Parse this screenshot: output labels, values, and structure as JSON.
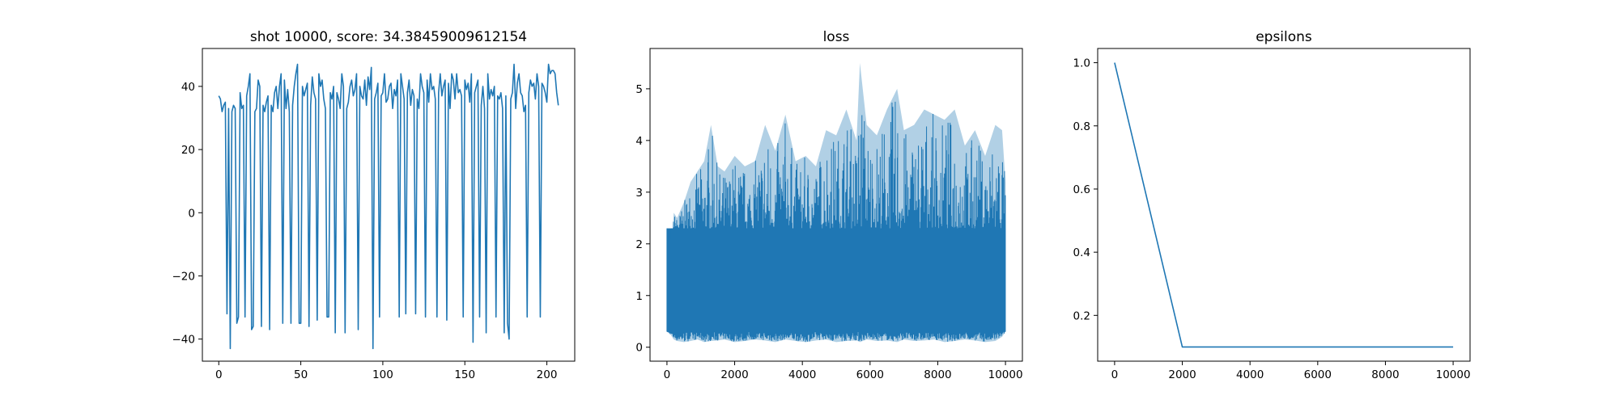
{
  "colors": {
    "line": "#1f77b4",
    "axes": "#000000",
    "background": "#ffffff"
  },
  "chart_data": [
    {
      "type": "line",
      "title": "shot 10000, score: 34.38459009612154",
      "xlabel": "",
      "ylabel": "",
      "xlim": [
        -10,
        217
      ],
      "ylim": [
        -47,
        52
      ],
      "xticks": [
        0,
        50,
        100,
        150,
        200
      ],
      "yticks": [
        -40,
        -20,
        0,
        20,
        40
      ],
      "series": [
        {
          "x": [
            0,
            1,
            2,
            3,
            4,
            5,
            6,
            7,
            8,
            9,
            10,
            11,
            12,
            13,
            14,
            15,
            16,
            17,
            18,
            19,
            20,
            21,
            22,
            23,
            24,
            25,
            26,
            27,
            28,
            29,
            30,
            31,
            32,
            33,
            34,
            35,
            36,
            37,
            38,
            39,
            40,
            41,
            42,
            43,
            44,
            45,
            46,
            47,
            48,
            49,
            50,
            51,
            52,
            53,
            54,
            55,
            56,
            57,
            58,
            59,
            60,
            61,
            62,
            63,
            64,
            65,
            66,
            67,
            68,
            69,
            70,
            71,
            72,
            73,
            74,
            75,
            76,
            77,
            78,
            79,
            80,
            81,
            82,
            83,
            84,
            85,
            86,
            87,
            88,
            89,
            90,
            91,
            92,
            93,
            94,
            95,
            96,
            97,
            98,
            99,
            100,
            101,
            102,
            103,
            104,
            105,
            106,
            107,
            108,
            109,
            110,
            111,
            112,
            113,
            114,
            115,
            116,
            117,
            118,
            119,
            120,
            121,
            122,
            123,
            124,
            125,
            126,
            127,
            128,
            129,
            130,
            131,
            132,
            133,
            134,
            135,
            136,
            137,
            138,
            139,
            140,
            141,
            142,
            143,
            144,
            145,
            146,
            147,
            148,
            149,
            150,
            151,
            152,
            153,
            154,
            155,
            156,
            157,
            158,
            159,
            160,
            161,
            162,
            163,
            164,
            165,
            166,
            167,
            168,
            169,
            170,
            171,
            172,
            173,
            174,
            175,
            176,
            177,
            178,
            179,
            180,
            181,
            182,
            183,
            184,
            185,
            186,
            187,
            188,
            189,
            190,
            191,
            192,
            193,
            194,
            195,
            196,
            197,
            198,
            199,
            200,
            201,
            202,
            203,
            204,
            205,
            206,
            207
          ],
          "y": [
            37,
            36,
            32,
            34,
            35,
            -32,
            33,
            -43,
            32,
            34,
            33,
            -35,
            -33,
            38,
            33,
            34,
            -33,
            37,
            40,
            44,
            -37,
            -36,
            32,
            33,
            42,
            40,
            -36,
            34,
            32,
            35,
            37,
            -37,
            34,
            32,
            38,
            40,
            33,
            40,
            44,
            -35,
            42,
            33,
            39,
            32,
            -35,
            34,
            40,
            44,
            47,
            -35,
            -35,
            40,
            37,
            39,
            41,
            -36,
            34,
            43,
            38,
            36,
            -34,
            44,
            40,
            42,
            36,
            33,
            -33,
            -33,
            38,
            36,
            40,
            -38,
            38,
            36,
            33,
            44,
            40,
            -38,
            33,
            35,
            40,
            42,
            37,
            39,
            44,
            -37,
            40,
            37,
            36,
            42,
            34,
            43,
            39,
            46,
            -43,
            36,
            38,
            41,
            -33,
            37,
            38,
            44,
            35,
            36,
            40,
            41,
            33,
            39,
            37,
            42,
            -33,
            44,
            40,
            36,
            -32,
            38,
            42,
            34,
            39,
            37,
            -32,
            36,
            33,
            44,
            40,
            38,
            -33,
            42,
            35,
            44,
            39,
            40,
            36,
            -33,
            38,
            44,
            37,
            40,
            42,
            -34,
            41,
            33,
            44,
            42,
            36,
            44,
            38,
            39,
            37,
            -33,
            42,
            39,
            41,
            35,
            44,
            -41,
            38,
            40,
            42,
            -33,
            34,
            40,
            33,
            -38,
            44,
            36,
            39,
            37,
            40,
            -33,
            37,
            36,
            38,
            33,
            -38,
            37,
            -35,
            -40,
            36,
            38,
            47,
            33,
            41,
            44,
            38,
            37,
            32,
            34,
            -33,
            38,
            42,
            40,
            41,
            36,
            44,
            40,
            -33,
            41,
            40,
            38,
            35,
            47,
            44,
            45,
            45,
            44,
            38,
            34
          ]
        }
      ]
    },
    {
      "type": "line",
      "title": "loss",
      "xlabel": "",
      "ylabel": "",
      "xlim": [
        -500,
        10500
      ],
      "ylim": [
        -0.27,
        5.78
      ],
      "xticks": [
        0,
        2000,
        4000,
        6000,
        8000,
        10000
      ],
      "yticks": [
        0,
        1,
        2,
        3,
        4,
        5
      ],
      "x_range": [
        0,
        10000
      ],
      "series": [
        {
          "envelope_x": [
            0,
            100,
            200,
            300,
            500,
            700,
            900,
            1100,
            1300,
            1500,
            1700,
            2000,
            2300,
            2600,
            2900,
            3200,
            3500,
            3800,
            4100,
            4400,
            4700,
            5000,
            5300,
            5600,
            5700,
            5900,
            6200,
            6500,
            6800,
            7000,
            7300,
            7600,
            7900,
            8200,
            8500,
            8800,
            9100,
            9400,
            9700,
            9900,
            10000
          ],
          "upper": [
            1.4,
            1.6,
            2.6,
            2.5,
            2.8,
            3.2,
            3.4,
            3.6,
            4.3,
            3.5,
            3.4,
            3.7,
            3.5,
            3.6,
            4.3,
            3.8,
            4.5,
            3.6,
            3.7,
            3.5,
            4.2,
            4.1,
            4.6,
            4.0,
            5.5,
            4.3,
            4.1,
            4.6,
            5.0,
            4.2,
            4.3,
            4.6,
            4.5,
            4.4,
            4.6,
            3.9,
            4.2,
            3.7,
            4.3,
            4.2,
            3.2
          ],
          "lower": [
            0.3,
            0.25,
            0.15,
            0.12,
            0.1,
            0.12,
            0.15,
            0.1,
            0.12,
            0.13,
            0.15,
            0.1,
            0.12,
            0.15,
            0.13,
            0.1,
            0.15,
            0.12,
            0.1,
            0.13,
            0.15,
            0.1,
            0.12,
            0.13,
            0.1,
            0.15,
            0.12,
            0.13,
            0.1,
            0.15,
            0.12,
            0.13,
            0.15,
            0.1,
            0.12,
            0.15,
            0.13,
            0.1,
            0.12,
            0.2,
            0.3
          ],
          "typical_range": [
            0.3,
            2.3
          ]
        }
      ]
    },
    {
      "type": "line",
      "title": "epsilons",
      "xlabel": "",
      "ylabel": "",
      "xlim": [
        -500,
        10500
      ],
      "ylim": [
        0.055,
        1.045
      ],
      "xticks": [
        0,
        2000,
        4000,
        6000,
        8000,
        10000
      ],
      "yticks": [
        0.2,
        0.4,
        0.6,
        0.8,
        1.0
      ],
      "series": [
        {
          "x": [
            0,
            2000,
            10000
          ],
          "y": [
            1.0,
            0.1,
            0.1
          ]
        }
      ]
    }
  ]
}
